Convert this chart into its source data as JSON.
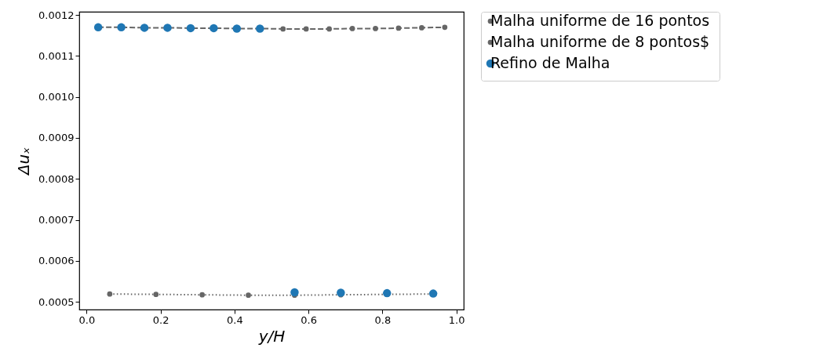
{
  "chart_data": {
    "type": "line",
    "xlabel": "y/H",
    "ylabel": "Δuₓ",
    "xlim": [
      -0.02,
      1.02
    ],
    "xticks": [
      {
        "value": 0,
        "label": "0.0"
      },
      0.2,
      0.4,
      0.6,
      0.8,
      {
        "value": 1,
        "label": "1.0"
      }
    ],
    "ylim": [
      0.000481,
      0.001208
    ],
    "yticks": [
      {
        "value": 0.0005,
        "label": "0.0005"
      },
      {
        "value": 0.0006,
        "label": "0.0006"
      },
      {
        "value": 0.0007,
        "label": "0.0007"
      },
      {
        "value": 0.0008,
        "label": "0.0008"
      },
      {
        "value": 0.0009,
        "label": "0.0009"
      },
      {
        "value": 0.001,
        "label": "0.0010"
      },
      {
        "value": 0.0011,
        "label": "0.0011"
      },
      {
        "value": 0.0012,
        "label": "0.0012"
      }
    ],
    "grid": false,
    "legend": "right",
    "marker": "circle",
    "series": [
      {
        "name": "Malha uniforme de 16 pontos",
        "line_style": "dashed",
        "color": "#666666",
        "x": [
          0.03125,
          0.09375,
          0.15625,
          0.21875,
          0.28125,
          0.34375,
          0.40625,
          0.46875,
          0.53125,
          0.59375,
          0.65625,
          0.71875,
          0.78125,
          0.84375,
          0.90625,
          0.96875
        ],
        "values": [
          0.00117,
          0.00117,
          0.001169,
          0.001169,
          0.001168,
          0.001168,
          0.001167,
          0.001167,
          0.001166,
          0.001166,
          0.001166,
          0.001167,
          0.001167,
          0.001168,
          0.001169,
          0.00117
        ]
      },
      {
        "name": "Malha uniforme de 8 pontos$",
        "line_style": "dotted",
        "color": "#666666",
        "x": [
          0.0625,
          0.1875,
          0.3125,
          0.4375,
          0.5625,
          0.6875,
          0.8125,
          0.9375
        ],
        "values": [
          0.000519,
          0.000518,
          0.000517,
          0.000516,
          0.000516,
          0.000517,
          0.000518,
          0.000519
        ]
      },
      {
        "name": "Refino de Malha",
        "type": "scatter",
        "color": "#1f77b4",
        "x": [
          0.03125,
          0.09375,
          0.15625,
          0.21875,
          0.28125,
          0.34375,
          0.40625,
          0.46875,
          0.5625,
          0.6875,
          0.8125,
          0.9375
        ],
        "values": [
          0.00117,
          0.00117,
          0.001169,
          0.001169,
          0.001168,
          0.001168,
          0.001167,
          0.001167,
          0.000523,
          0.000522,
          0.000521,
          0.00052
        ]
      }
    ]
  }
}
